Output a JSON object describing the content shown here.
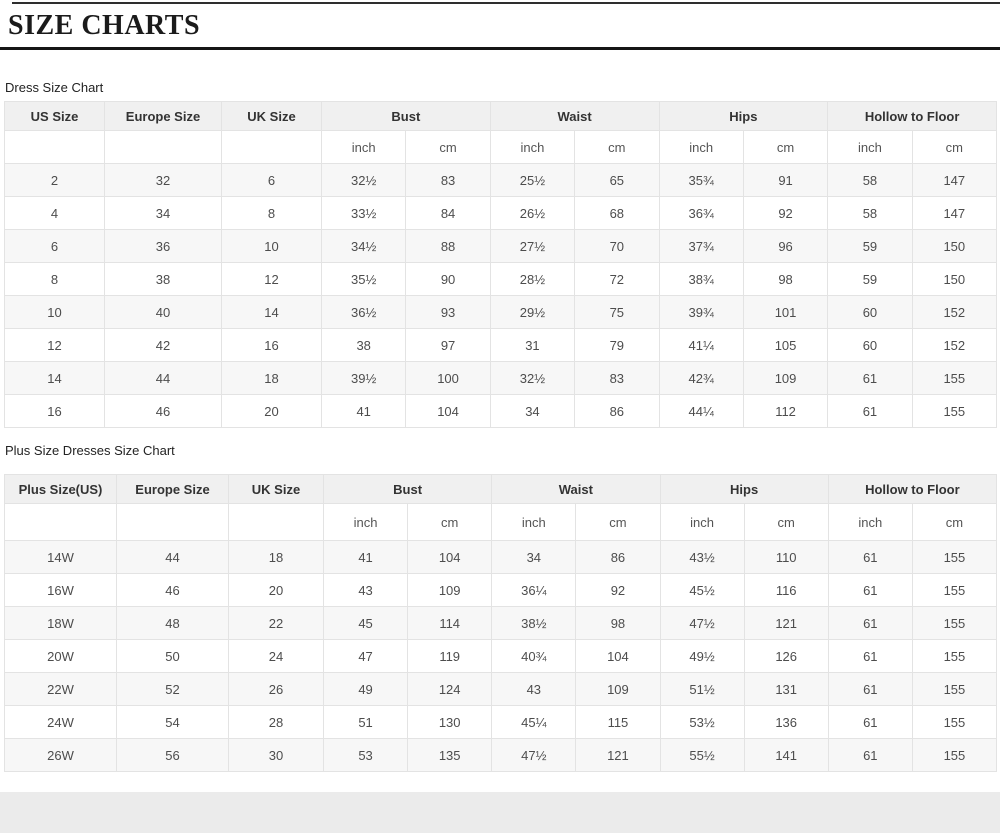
{
  "title": "SIZE CHARTS",
  "colors": {
    "header_bg": "#f0f0f0",
    "row_alt_bg": "#f7f7f7",
    "border": "#e3e3e3",
    "rule": "#151515",
    "footer_bg": "#ebebeb"
  },
  "unit_labels": [
    "inch",
    "cm"
  ],
  "tables": [
    {
      "caption": "Dress Size Chart",
      "size_col_headers": [
        "US Size",
        "Europe Size",
        "UK Size"
      ],
      "measure_col_headers": [
        "Bust",
        "Waist",
        "Hips",
        "Hollow to Floor"
      ],
      "rows": [
        [
          "2",
          "32",
          "6",
          "32½",
          "83",
          "25½",
          "65",
          "35¾",
          "91",
          "58",
          "147"
        ],
        [
          "4",
          "34",
          "8",
          "33½",
          "84",
          "26½",
          "68",
          "36¾",
          "92",
          "58",
          "147"
        ],
        [
          "6",
          "36",
          "10",
          "34½",
          "88",
          "27½",
          "70",
          "37¾",
          "96",
          "59",
          "150"
        ],
        [
          "8",
          "38",
          "12",
          "35½",
          "90",
          "28½",
          "72",
          "38¾",
          "98",
          "59",
          "150"
        ],
        [
          "10",
          "40",
          "14",
          "36½",
          "93",
          "29½",
          "75",
          "39¾",
          "101",
          "60",
          "152"
        ],
        [
          "12",
          "42",
          "16",
          "38",
          "97",
          "31",
          "79",
          "41¼",
          "105",
          "60",
          "152"
        ],
        [
          "14",
          "44",
          "18",
          "39½",
          "100",
          "32½",
          "83",
          "42¾",
          "109",
          "61",
          "155"
        ],
        [
          "16",
          "46",
          "20",
          "41",
          "104",
          "34",
          "86",
          "44¼",
          "112",
          "61",
          "155"
        ]
      ]
    },
    {
      "caption": "Plus Size Dresses Size Chart",
      "size_col_headers": [
        "Plus Size(US)",
        "Europe Size",
        "UK Size"
      ],
      "measure_col_headers": [
        "Bust",
        "Waist",
        "Hips",
        "Hollow to Floor"
      ],
      "rows": [
        [
          "14W",
          "44",
          "18",
          "41",
          "104",
          "34",
          "86",
          "43½",
          "110",
          "61",
          "155"
        ],
        [
          "16W",
          "46",
          "20",
          "43",
          "109",
          "36¼",
          "92",
          "45½",
          "116",
          "61",
          "155"
        ],
        [
          "18W",
          "48",
          "22",
          "45",
          "114",
          "38½",
          "98",
          "47½",
          "121",
          "61",
          "155"
        ],
        [
          "20W",
          "50",
          "24",
          "47",
          "119",
          "40¾",
          "104",
          "49½",
          "126",
          "61",
          "155"
        ],
        [
          "22W",
          "52",
          "26",
          "49",
          "124",
          "43",
          "109",
          "51½",
          "131",
          "61",
          "155"
        ],
        [
          "24W",
          "54",
          "28",
          "51",
          "130",
          "45¼",
          "115",
          "53½",
          "136",
          "61",
          "155"
        ],
        [
          "26W",
          "56",
          "30",
          "53",
          "135",
          "47½",
          "121",
          "55½",
          "141",
          "61",
          "155"
        ]
      ]
    }
  ]
}
